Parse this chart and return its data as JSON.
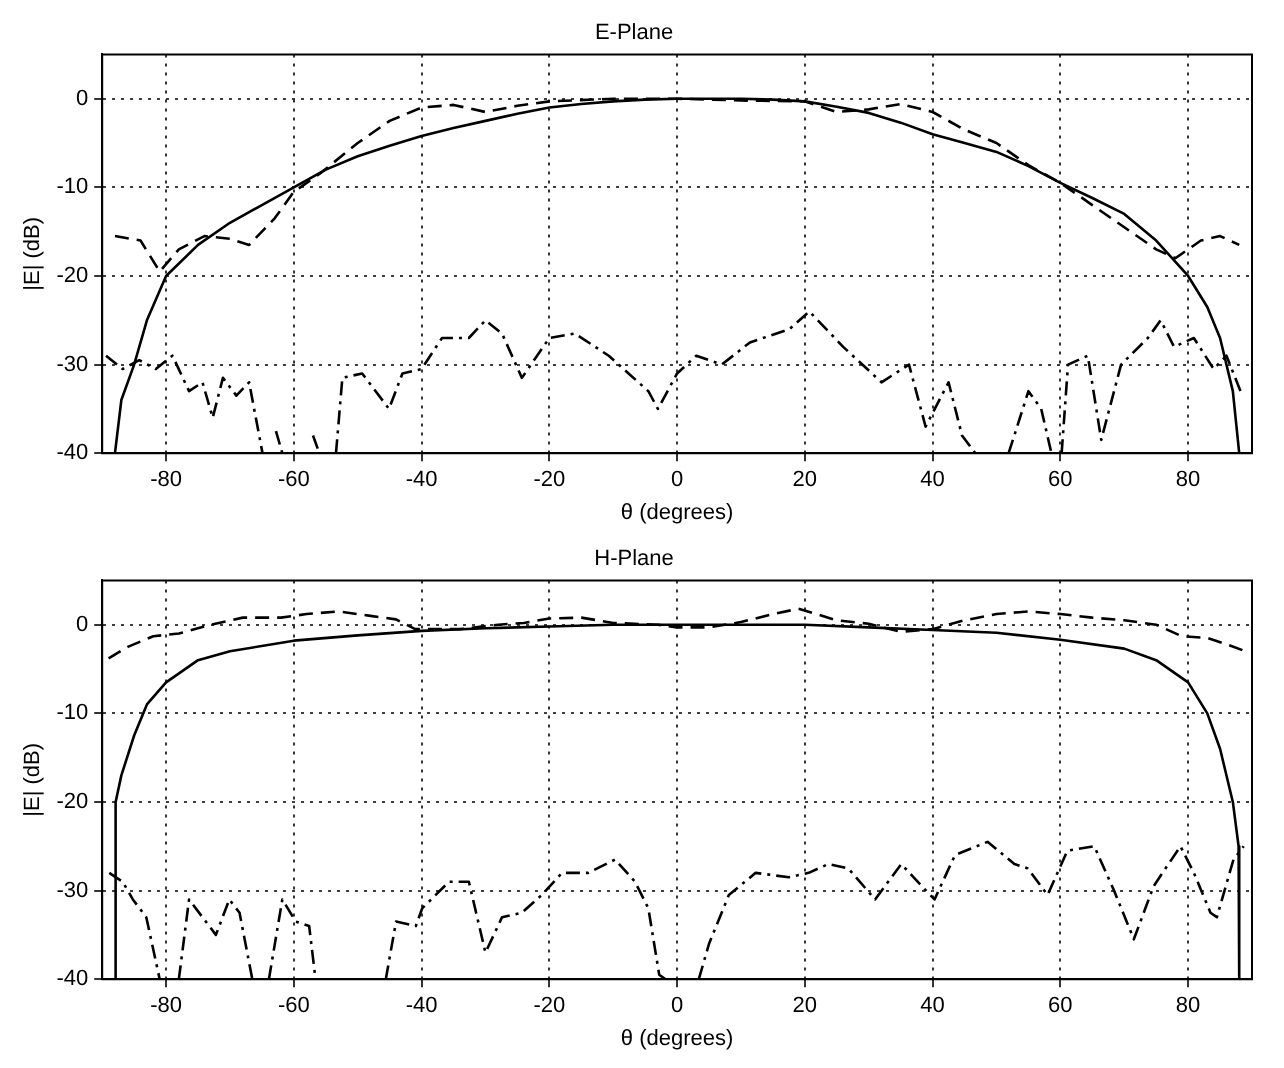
{
  "chart_data": [
    {
      "type": "line",
      "title": "E-Plane",
      "xlabel": "θ (degrees)",
      "ylabel": "|E| (dB)",
      "xlim": [
        -90,
        90
      ],
      "xticks": [
        -80,
        -60,
        -40,
        -20,
        0,
        20,
        40,
        60,
        80
      ],
      "ylim": [
        -40,
        5
      ],
      "yticks": [
        -40,
        -30,
        -20,
        -10,
        0
      ],
      "grid": true,
      "legend": false,
      "marker": "none",
      "series": [
        {
          "color": "#000000",
          "line_style": "solid",
          "x": [
            -88,
            -87,
            -85,
            -83,
            -80,
            -75,
            -70,
            -65,
            -60,
            -55,
            -50,
            -45,
            -40,
            -35,
            -30,
            -25,
            -20,
            -15,
            -10,
            -5,
            0,
            5,
            10,
            15,
            20,
            25,
            30,
            35,
            40,
            45,
            50,
            55,
            60,
            65,
            70,
            75,
            80,
            83,
            85,
            87,
            88
          ],
          "values": [
            -40,
            -34,
            -30,
            -25,
            -20,
            -16.5,
            -14,
            -12,
            -10,
            -8,
            -6.5,
            -5.3,
            -4.2,
            -3.3,
            -2.5,
            -1.7,
            -1,
            -0.6,
            -0.3,
            -0.1,
            0,
            0,
            0,
            -0.1,
            -0.3,
            -0.9,
            -1.6,
            -2.7,
            -4,
            -5,
            -6,
            -7.6,
            -9.5,
            -11.2,
            -13,
            -16,
            -20,
            -23.5,
            -27,
            -33,
            -40
          ]
        },
        {
          "color": "#000000",
          "line_style": "dashed",
          "x": [
            -88,
            -84,
            -81,
            -78,
            -74,
            -70,
            -67,
            -63,
            -60,
            -56,
            -50,
            -45,
            -40,
            -35,
            -30,
            -25,
            -20,
            -10,
            0,
            10,
            20,
            25,
            30,
            35,
            40,
            45,
            50,
            55,
            60,
            65,
            70,
            75,
            78,
            82,
            85,
            88
          ],
          "values": [
            -15.5,
            -16,
            -19.5,
            -17,
            -15.5,
            -15.8,
            -16.5,
            -13.5,
            -10.5,
            -8.5,
            -5,
            -2.5,
            -1,
            -0.7,
            -1.5,
            -0.8,
            -0.3,
            0,
            0,
            -0.2,
            -0.3,
            -1.5,
            -1.2,
            -0.6,
            -1.5,
            -3.5,
            -5,
            -7.5,
            -9.5,
            -12,
            -14.5,
            -17,
            -18,
            -16,
            -15.5,
            -16.5
          ]
        },
        {
          "color": "#000000",
          "line_style": "dashdot",
          "x": [
            -89.4,
            -86.8,
            -84.2,
            -81.6,
            -79,
            -76.4,
            -74.3,
            -72.7,
            -71.1,
            -69,
            -67,
            -64.9,
            -64,
            -62.8,
            -61.8,
            -61,
            -57,
            -56,
            -55,
            -53.4,
            -52.4,
            -49.3,
            -45.1,
            -43,
            -40,
            -36.8,
            -32.6,
            -30,
            -27.4,
            -24.3,
            -20,
            -16,
            -10.7,
            -7.6,
            -4.5,
            -3,
            0,
            3,
            7,
            11.4,
            17.6,
            20.7,
            26,
            32,
            36.3,
            38.9,
            42.5,
            44.6,
            46.7,
            50,
            51.9,
            55,
            57,
            58.6,
            59.5,
            60.2,
            61.2,
            64.3,
            66.4,
            69.5,
            73.7,
            75.7,
            77.8,
            80.9,
            84,
            86,
            88.2
          ],
          "values": [
            -29,
            -30.5,
            -29.5,
            -30.5,
            -29,
            -33,
            -32,
            -36,
            -31.5,
            -33.5,
            -32,
            -40,
            null,
            -37.5,
            -40,
            null,
            -38,
            -40,
            null,
            -40,
            -31.5,
            -31,
            -35,
            -31,
            -30.5,
            -27,
            -27,
            -25,
            -26.5,
            -31.5,
            -27,
            -26.5,
            -29,
            -31,
            -33,
            -35,
            -31,
            -29,
            -30,
            -27.5,
            -26,
            -24,
            -28,
            -32,
            -30,
            -37,
            -32,
            -38,
            -40,
            null,
            -40,
            -33,
            -35,
            -40,
            null,
            -40,
            -30,
            -29,
            -38.5,
            -30,
            -27,
            -25,
            -28,
            -27,
            -30.5,
            -29,
            -33
          ]
        }
      ]
    },
    {
      "type": "line",
      "title": "H-Plane",
      "xlabel": "θ (degrees)",
      "ylabel": "|E| (dB)",
      "xlim": [
        -90,
        90
      ],
      "xticks": [
        -80,
        -60,
        -40,
        -20,
        0,
        20,
        40,
        60,
        80
      ],
      "ylim": [
        -40,
        5
      ],
      "yticks": [
        -40,
        -30,
        -20,
        -10,
        0
      ],
      "grid": true,
      "legend": false,
      "marker": "none",
      "series": [
        {
          "color": "#000000",
          "line_style": "solid",
          "x": [
            -88,
            -87.9,
            -87,
            -85,
            -83,
            -80,
            -75,
            -70,
            -60,
            -50,
            -40,
            -30,
            -20,
            -10,
            0,
            10,
            20,
            30,
            40,
            50,
            60,
            70,
            75,
            80,
            83,
            85,
            87,
            87.9,
            88
          ],
          "values": [
            -40,
            -20,
            -17,
            -12.5,
            -9,
            -6.5,
            -4,
            -3,
            -1.8,
            -1.2,
            -0.7,
            -0.4,
            -0.2,
            0,
            0,
            0,
            0,
            -0.3,
            -0.6,
            -0.9,
            -1.7,
            -2.7,
            -4,
            -6.5,
            -10,
            -14,
            -20,
            -25,
            -40
          ]
        },
        {
          "color": "#000000",
          "line_style": "dashed",
          "x": [
            -89,
            -86,
            -82,
            -78,
            -73,
            -68,
            -62,
            -58,
            -53,
            -48,
            -44,
            -41,
            -38,
            -34,
            -28,
            -24,
            -20,
            -15,
            -10,
            -3,
            0,
            5,
            10,
            15,
            19,
            25,
            30,
            35,
            40,
            45,
            50,
            55,
            60,
            65,
            70,
            75,
            79,
            83,
            86,
            89
          ],
          "values": [
            -3.8,
            -2.5,
            -1.3,
            -1,
            0,
            0.8,
            0.8,
            1.2,
            1.5,
            1,
            0.6,
            -0.5,
            -0.5,
            -0.5,
            0,
            0.2,
            0.7,
            0.8,
            0.2,
            0,
            -0.3,
            -0.3,
            0.3,
            1.2,
            1.8,
            0.5,
            0.1,
            -0.8,
            -0.5,
            0.5,
            1.2,
            1.5,
            1.2,
            0.8,
            0.5,
            0,
            -1.3,
            -1.5,
            -2.2,
            -3
          ]
        },
        {
          "color": "#000000",
          "line_style": "dashdot",
          "x": [
            -88.9,
            -86.8,
            -85.2,
            -83.1,
            -81,
            -79.5,
            -78,
            -76.4,
            -74.3,
            -72.2,
            -70.1,
            -68.5,
            -66.5,
            -65,
            -63.9,
            -61.8,
            -59.7,
            -57.6,
            -56.6,
            -50,
            -45.6,
            -44,
            -40.9,
            -39.9,
            -35.7,
            -32.6,
            -30,
            -27.4,
            -24.3,
            -21.2,
            -18,
            -13.9,
            -9.7,
            -6.6,
            -4.5,
            -2.8,
            -1.8,
            1,
            3.4,
            5,
            8.1,
            12.3,
            17.5,
            20.6,
            23.7,
            26.8,
            31,
            35.1,
            38.3,
            40.3,
            43.5,
            48.6,
            52.8,
            54.9,
            58,
            61.1,
            65.3,
            68.4,
            71.5,
            74.6,
            78.8,
            80.9,
            83.5,
            84.5,
            87.1,
            88.7
          ],
          "values": [
            -28,
            -29,
            -31,
            -33,
            -40,
            null,
            -40,
            -31,
            -33,
            -35,
            -31,
            -32.5,
            -40,
            null,
            -40,
            -31,
            -33.5,
            -34,
            -40,
            null,
            -40,
            -33.5,
            -34,
            -32,
            -29,
            -29,
            -37,
            -33,
            -32.5,
            -30.5,
            -28,
            -28,
            -26.5,
            -29,
            -32,
            -39.5,
            -40,
            null,
            -40,
            -36,
            -30.5,
            -28,
            -28.5,
            -28,
            -27,
            -27.5,
            -31,
            -27,
            -29.5,
            -31,
            -26,
            -24.5,
            -27,
            -27.5,
            -30.5,
            -25.5,
            -25,
            -30,
            -35.5,
            -29.5,
            -25,
            -28,
            -32.5,
            -33,
            -26.5,
            -25
          ]
        }
      ]
    }
  ]
}
